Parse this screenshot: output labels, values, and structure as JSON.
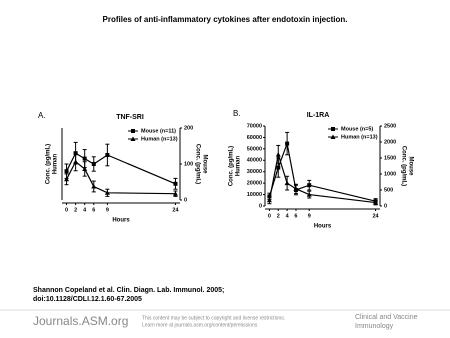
{
  "title": "Profiles of anti-inflammatory cytokines after endotoxin injection.",
  "citation": [
    "Shannon Copeland et al. Clin. Diagn. Lab. Immunol. 2005;",
    "doi:10.1128/CDLI.12.1.60-67.2005"
  ],
  "footer": {
    "brand": "Journals.ASM.org",
    "notice": [
      "This content may be subject to copyright and license restrictions.",
      "Learn more at journals.asm.org/content/permissions"
    ],
    "journal": [
      "Clinical and Vaccine",
      "Immunology"
    ]
  },
  "chart_data": [
    {
      "type": "line",
      "panel": "A.",
      "title": "TNF-SRI",
      "xlabel": "Hours",
      "ylabel": [
        "Conc. (pg/mL)",
        "Human"
      ],
      "y2label": [
        "Conc. (pg/mL)",
        "Mouse"
      ],
      "x": [
        0,
        2,
        4,
        6,
        9,
        24
      ],
      "xlim": [
        -1,
        25
      ],
      "xticks": [
        0,
        2,
        4,
        6,
        9,
        24
      ],
      "ylim": [
        0,
        800
      ],
      "y2lim": [
        0,
        200
      ],
      "y2ticks": [
        0,
        100,
        200
      ],
      "series": [
        {
          "name": "Mouse (n=11)",
          "axis": "y2",
          "marker": "square",
          "color": "#000",
          "values": [
            80,
            130,
            115,
            100,
            125,
            45
          ],
          "errors": [
            20,
            30,
            25,
            20,
            30,
            15
          ]
        },
        {
          "name": "Human (n=13)",
          "axis": "y",
          "marker": "triangle",
          "color": "#000",
          "values": [
            230,
            425,
            345,
            150,
            80,
            70
          ],
          "errors": [
            60,
            100,
            80,
            60,
            40,
            30
          ]
        }
      ]
    },
    {
      "type": "line",
      "panel": "B.",
      "title": "IL-1RA",
      "xlabel": "Hours",
      "ylabel": [
        "Conc. (pg/mL)",
        "Human"
      ],
      "y2label": [
        "Conc. (pg/mL)",
        "Mouse"
      ],
      "x": [
        0,
        2,
        4,
        6,
        9,
        24
      ],
      "xlim": [
        -1,
        25
      ],
      "xticks": [
        0,
        2,
        4,
        6,
        9,
        24
      ],
      "ylim": [
        0,
        70000
      ],
      "yticks": [
        0,
        10000,
        20000,
        30000,
        40000,
        50000,
        60000,
        70000
      ],
      "y2lim": [
        0,
        2500
      ],
      "y2ticks": [
        0,
        500,
        1000,
        1500,
        2000,
        2500
      ],
      "series": [
        {
          "name": "Mouse (n=5)",
          "axis": "y2",
          "marker": "square",
          "color": "#000",
          "values": [
            300,
            1200,
            1950,
            500,
            650,
            150
          ],
          "errors": [
            100,
            300,
            350,
            150,
            150,
            80
          ]
        },
        {
          "name": "Human (n=13)",
          "axis": "y",
          "marker": "triangle",
          "color": "#000",
          "values": [
            5000,
            45000,
            20000,
            15000,
            10000,
            3000
          ],
          "errors": [
            3000,
            8000,
            6000,
            4000,
            3000,
            2000
          ]
        }
      ]
    }
  ]
}
